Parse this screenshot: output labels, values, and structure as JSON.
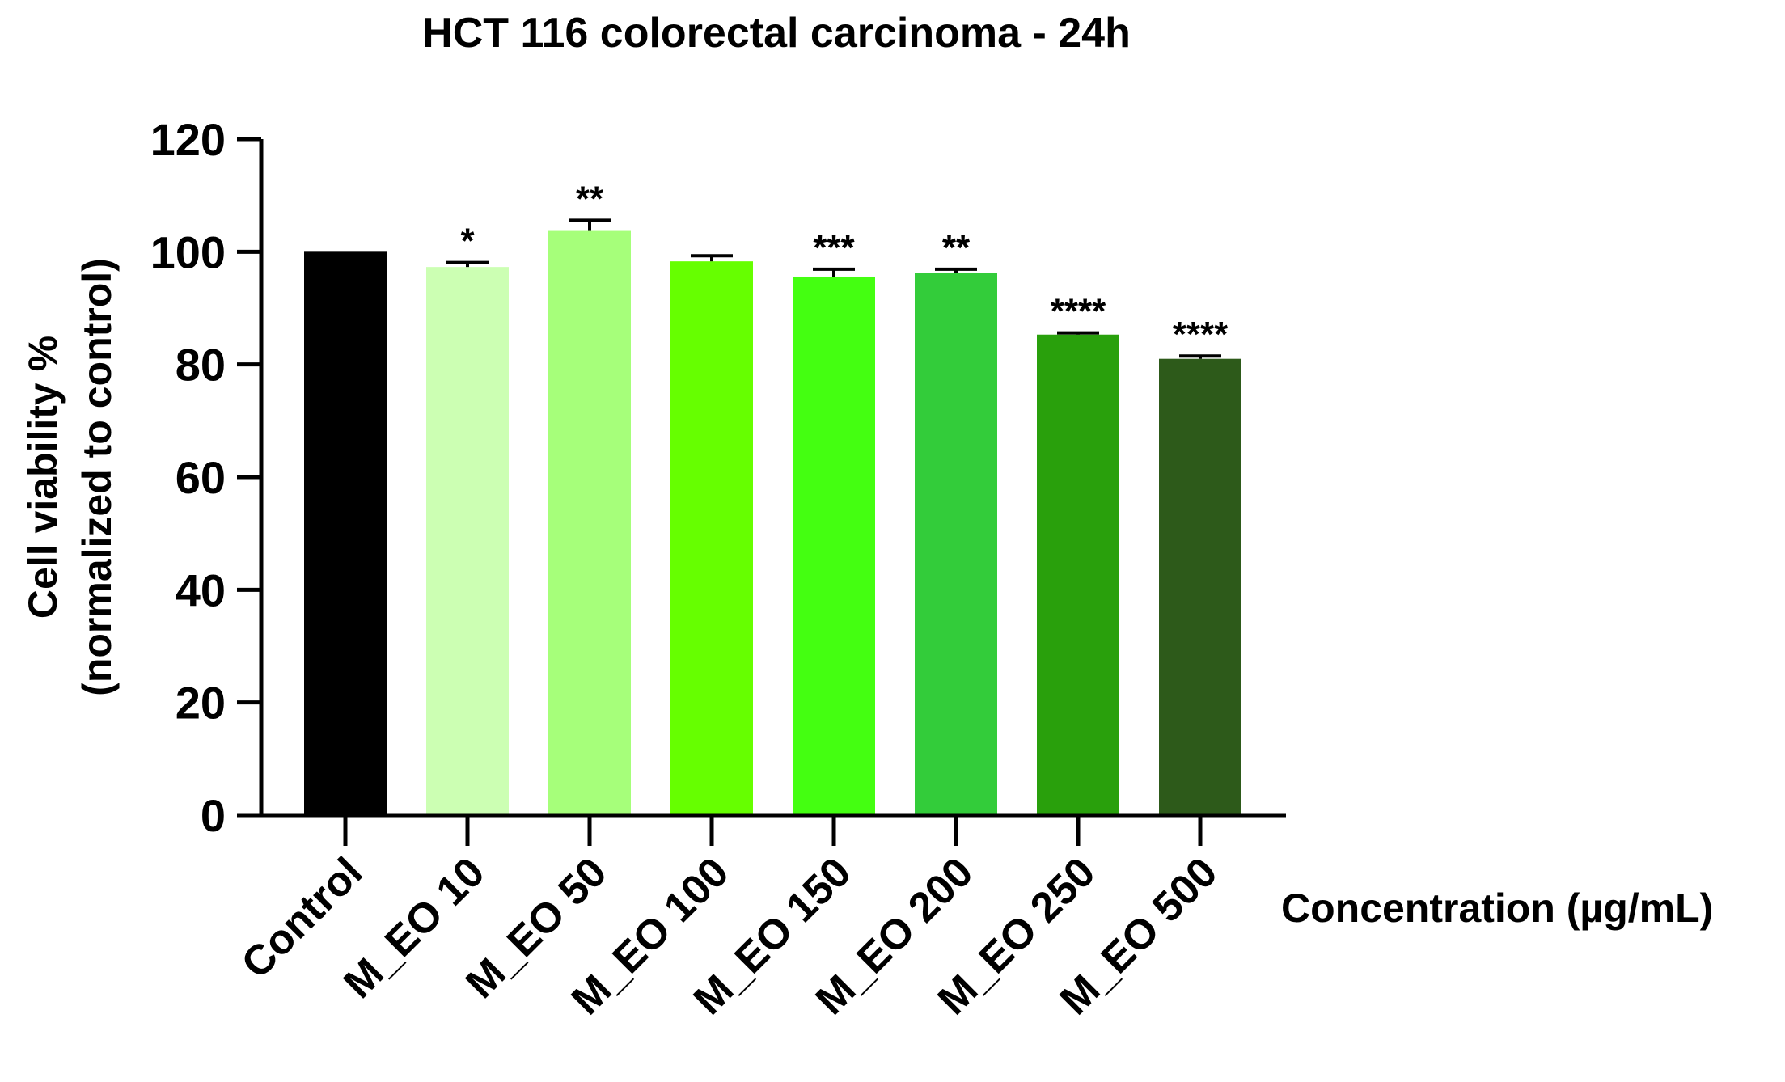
{
  "chart_data": {
    "type": "bar",
    "title": "HCT 116 colorectal carcinoma - 24h",
    "ylabel": [
      "Cell viability %",
      "(normalized to control)"
    ],
    "xlabel": "Concentration (µg/mL)",
    "categories": [
      "Control",
      "M_EO 10",
      "M_EO 50",
      "M_EO 100",
      "M_EO 150",
      "M_EO 200",
      "M_EO 250",
      "M_EO 500"
    ],
    "values": [
      100,
      97.3,
      103.7,
      98.3,
      95.6,
      96.3,
      85.3,
      81.0
    ],
    "errors": [
      0,
      0.8,
      1.9,
      1.0,
      1.3,
      0.6,
      0.3,
      0.5
    ],
    "significance": [
      "",
      "*",
      "**",
      "",
      "***",
      "**",
      "****",
      "****"
    ],
    "colors": [
      "#000000",
      "#ccffb3",
      "#a6ff7a",
      "#66ff00",
      "#44ff11",
      "#33cc3a",
      "#29a00c",
      "#2d5a1a"
    ],
    "ylim": [
      0,
      120
    ],
    "yticks": [
      0,
      20,
      40,
      60,
      80,
      100,
      120
    ],
    "grid": false,
    "legend": "none"
  }
}
